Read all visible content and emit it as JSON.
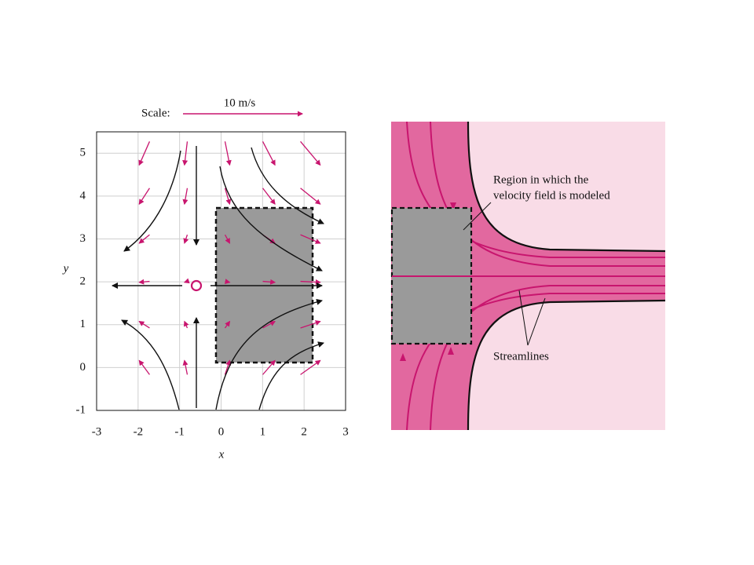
{
  "left_plot": {
    "scale_label": "Scale:",
    "scale_value": "10 m/s",
    "xlabel": "x",
    "ylabel": "y",
    "xlim": [
      -3,
      3
    ],
    "ylim": [
      -1,
      5.5
    ],
    "xticks": [
      -3,
      -2,
      -1,
      0,
      1,
      2,
      3
    ],
    "yticks": [
      -1,
      0,
      1,
      2,
      3,
      4,
      5
    ]
  },
  "right_diagram": {
    "region_label": [
      "Region in which the",
      "velocity field is modeled"
    ],
    "streamlines_label": "Streamlines"
  }
}
